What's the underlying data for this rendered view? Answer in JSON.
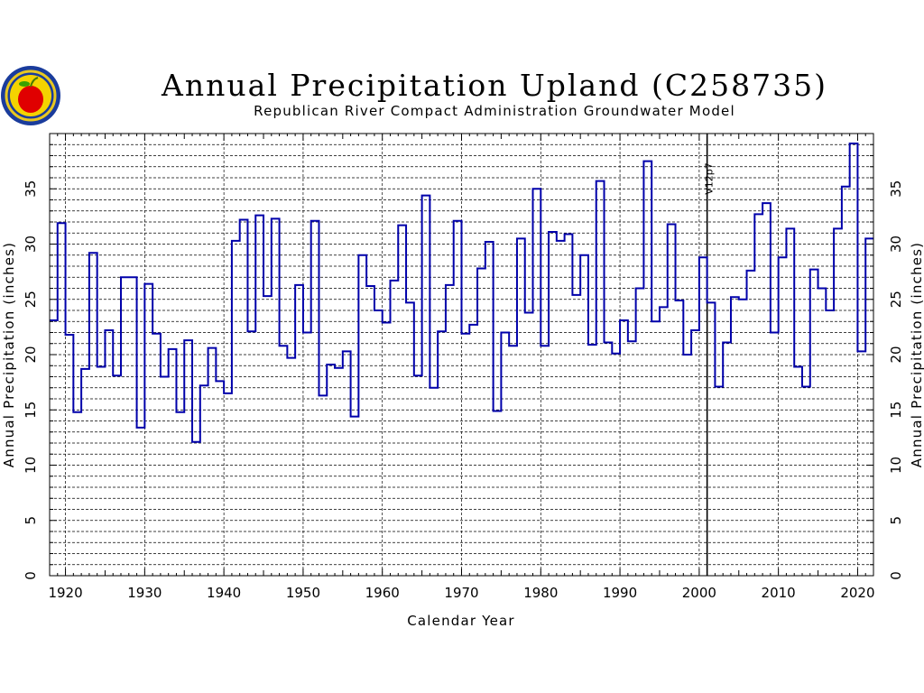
{
  "chart_data": {
    "type": "line",
    "style": "step",
    "title": "Annual Precipitation Upland (C258735)",
    "subtitle": "Republican River Compact Administration Groundwater Model",
    "xlabel": "Calendar Year",
    "ylabel": "Annual Precipitation (inches)",
    "ylabel_right": "Annual Precipitation (inches)",
    "xlim": [
      1918,
      2022
    ],
    "ylim": [
      0,
      40
    ],
    "xticks": [
      1920,
      1930,
      1940,
      1950,
      1960,
      1970,
      1980,
      1990,
      2000,
      2010,
      2020
    ],
    "yticks": [
      0,
      5,
      10,
      15,
      20,
      25,
      30,
      35
    ],
    "grid": true,
    "line_color": "#0000aa",
    "logo": "rrca-apple-seal-icon",
    "annotations": [
      {
        "x": 2001,
        "text": "V12p7"
      }
    ],
    "series": [
      {
        "x": [
          1918,
          1919,
          1920,
          1921,
          1922,
          1923,
          1924,
          1925,
          1926,
          1927,
          1928,
          1929,
          1930,
          1931,
          1932,
          1933,
          1934,
          1935,
          1936,
          1937,
          1938,
          1939,
          1940,
          1941,
          1942,
          1943,
          1944,
          1945,
          1946,
          1947,
          1948,
          1949,
          1950,
          1951,
          1952,
          1953,
          1954,
          1955,
          1956,
          1957,
          1958,
          1959,
          1960,
          1961,
          1962,
          1963,
          1964,
          1965,
          1966,
          1967,
          1968,
          1969,
          1970,
          1971,
          1972,
          1973,
          1974,
          1975,
          1976,
          1977,
          1978,
          1979,
          1980,
          1981,
          1982,
          1983,
          1984,
          1985,
          1986,
          1987,
          1988,
          1989,
          1990,
          1991,
          1992,
          1993,
          1994,
          1995,
          1996,
          1997,
          1998,
          1999,
          2000,
          2001,
          2002,
          2003,
          2004,
          2005,
          2006,
          2007,
          2008,
          2009,
          2010,
          2011,
          2012,
          2013,
          2014,
          2015,
          2016,
          2017,
          2018,
          2019,
          2020,
          2021
        ],
        "values": [
          23.1,
          31.9,
          21.8,
          14.8,
          18.7,
          29.2,
          18.9,
          22.2,
          18.1,
          27.0,
          27.0,
          13.4,
          26.4,
          21.9,
          18.0,
          20.5,
          14.8,
          21.3,
          12.1,
          17.2,
          20.6,
          17.6,
          16.5,
          30.3,
          32.2,
          22.1,
          32.6,
          25.3,
          32.3,
          20.8,
          19.7,
          26.3,
          22.0,
          32.1,
          16.3,
          19.1,
          18.8,
          20.3,
          14.4,
          29.0,
          26.2,
          24.0,
          22.9,
          26.7,
          31.7,
          24.7,
          18.1,
          34.4,
          17.0,
          22.1,
          26.3,
          32.1,
          21.9,
          22.7,
          27.8,
          30.2,
          14.9,
          22.0,
          20.8,
          30.5,
          23.8,
          35.0,
          20.8,
          31.1,
          30.3,
          30.9,
          25.4,
          29.0,
          20.9,
          35.7,
          21.1,
          20.1,
          23.1,
          21.2,
          26.0,
          37.5,
          23.0,
          24.3,
          31.8,
          24.9,
          20.0,
          22.2,
          28.8,
          24.7,
          17.1,
          21.1,
          25.2,
          25.0,
          27.6,
          32.7,
          33.7,
          22.0,
          28.8,
          31.4,
          18.9,
          17.1,
          27.7,
          26.0,
          24.0,
          31.4,
          35.2,
          39.1,
          20.3,
          30.5
        ]
      }
    ]
  }
}
